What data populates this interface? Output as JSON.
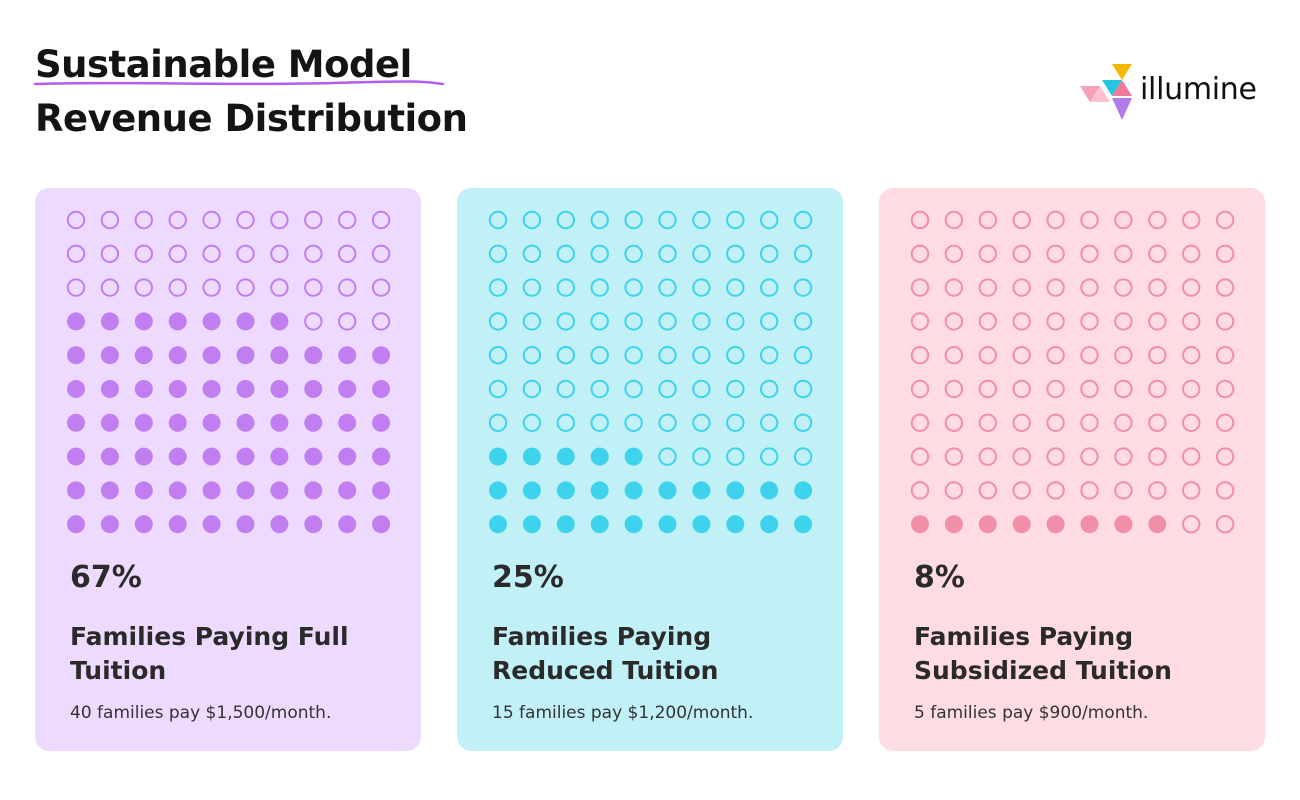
{
  "header": {
    "title_line1": "Sustainable Model",
    "title_line2": "Revenue Distribution"
  },
  "logo": {
    "text": "illumine",
    "icon": "triangle-cluster-logo-icon",
    "colors": [
      "#f5b800",
      "#26c6e0",
      "#f5a0b4",
      "#b07be8",
      "#f07a9a"
    ]
  },
  "chart_data": {
    "type": "waffle",
    "grid": {
      "rows": 10,
      "cols": 10
    },
    "series": [
      {
        "value": 67,
        "label": "67%",
        "title": "Families Paying Full Tuition",
        "description": "40 families pay $1,500/month.",
        "color": "#c07ef0",
        "background": "#eedaff"
      },
      {
        "value": 25,
        "label": "25%",
        "title": "Families Paying Reduced Tuition",
        "description": "15 families pay $1,200/month.",
        "color": "#3dd3ec",
        "background": "#c1f0f7"
      },
      {
        "value": 8,
        "label": "8%",
        "title": "Families Paying Subsidized Tuition",
        "description": "5 families pay $900/month.",
        "color": "#f08fa7",
        "background": "#ffdbe2"
      }
    ]
  }
}
